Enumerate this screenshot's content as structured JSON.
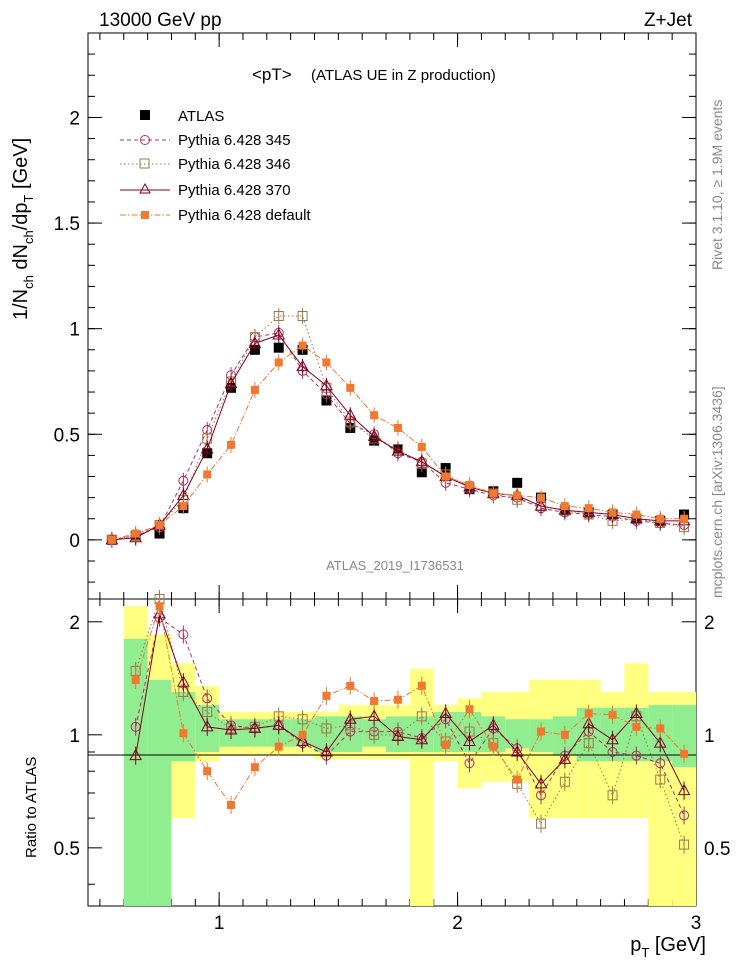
{
  "header": {
    "left": "13000 GeV pp",
    "right": "Z+Jet",
    "title": "<pT>",
    "subtitle": "(ATLAS UE in Z production)",
    "analysis_id": "ATLAS_2019_I1736531",
    "side_version": "Rivet 3.1.10, ≥ 1.9M events",
    "side_site": "mcplots.cern.ch [arXiv:1306.3436]"
  },
  "axes": {
    "ylabel_main": "1/Nch dNch/dpT [GeV]",
    "ylabel_main_parts": [
      "1/N",
      "ch",
      " dN",
      "ch",
      "/dp",
      "T",
      " [GeV]"
    ],
    "ylabel_ratio": "Ratio to ATLAS",
    "xlabel": "pT [GeV]",
    "xlabel_parts": [
      "p",
      "T",
      " [GeV]"
    ],
    "main_yticks": [
      "0",
      "0.5",
      "1",
      "1.5",
      "2"
    ],
    "ratio_yticks": [
      "0.5",
      "1",
      "2"
    ],
    "xticks": [
      "1",
      "2",
      "3"
    ]
  },
  "legend": {
    "atlas": "ATLAS",
    "s345": "Pythia 6.428 345",
    "s346": "Pythia 6.428 346",
    "s370": "Pythia 6.428 370",
    "sdef": "Pythia 6.428 default"
  },
  "colors": {
    "atlas": "#000000",
    "s345": "#b03060",
    "s346": "#a0784a",
    "s370": "#800020",
    "sdef": "#f07830",
    "band_inner": "#90ee90",
    "band_outer": "#ffff80"
  },
  "chart_data": {
    "type": "line",
    "x": [
      0.55,
      0.65,
      0.75,
      0.85,
      0.95,
      1.05,
      1.15,
      1.25,
      1.35,
      1.45,
      1.55,
      1.65,
      1.75,
      1.85,
      1.95,
      2.05,
      2.15,
      2.25,
      2.35,
      2.45,
      2.55,
      2.65,
      2.75,
      2.85,
      2.95
    ],
    "xlim": [
      0.45,
      3.0
    ],
    "ylim": [
      -0.28,
      2.4
    ],
    "ratio_ylim": [
      0.35,
      2.3
    ],
    "ratio_log": true,
    "series": [
      {
        "key": "atlas",
        "name": "ATLAS",
        "values": [
          0.0,
          0.02,
          0.03,
          0.15,
          0.41,
          0.72,
          0.9,
          0.91,
          0.9,
          0.66,
          0.53,
          0.47,
          0.43,
          0.32,
          0.34,
          0.24,
          0.23,
          0.27,
          0.2,
          0.14,
          0.13,
          0.12,
          0.1,
          0.09,
          0.12
        ]
      },
      {
        "key": "s345",
        "name": "Pythia 6.428 345",
        "values": [
          0.0,
          0.02,
          0.06,
          0.28,
          0.52,
          0.78,
          0.96,
          0.98,
          0.8,
          0.69,
          0.55,
          0.5,
          0.41,
          0.37,
          0.27,
          0.24,
          0.21,
          0.2,
          0.15,
          0.13,
          0.12,
          0.11,
          0.09,
          0.08,
          0.07
        ]
      },
      {
        "key": "s346",
        "name": "Pythia 6.428 346",
        "values": [
          0.0,
          0.02,
          0.07,
          0.19,
          0.48,
          0.75,
          0.96,
          1.06,
          1.06,
          0.72,
          0.56,
          0.48,
          0.43,
          0.36,
          0.31,
          0.25,
          0.22,
          0.19,
          0.16,
          0.14,
          0.12,
          0.09,
          0.1,
          0.08,
          0.06
        ]
      },
      {
        "key": "s370",
        "name": "Pythia 6.428 370",
        "values": [
          0.0,
          0.01,
          0.07,
          0.21,
          0.43,
          0.74,
          0.93,
          0.97,
          0.82,
          0.73,
          0.59,
          0.49,
          0.42,
          0.37,
          0.3,
          0.25,
          0.22,
          0.21,
          0.16,
          0.14,
          0.13,
          0.12,
          0.1,
          0.09,
          0.09
        ]
      },
      {
        "key": "sdef",
        "name": "Pythia 6.428 default",
        "values": [
          0.0,
          0.03,
          0.07,
          0.16,
          0.31,
          0.45,
          0.71,
          0.84,
          0.92,
          0.84,
          0.72,
          0.59,
          0.53,
          0.44,
          0.3,
          0.26,
          0.22,
          0.21,
          0.2,
          0.16,
          0.15,
          0.13,
          0.12,
          0.1,
          0.1
        ]
      }
    ],
    "ratios": {
      "s345": [
        1.05,
        2.05,
        1.85,
        1.25,
        1.06,
        1.04,
        1.06,
        0.95,
        0.88,
        1.02,
        1.02,
        1.02,
        0.98,
        1.1,
        0.84,
        1.04,
        0.92,
        0.69,
        0.88,
        1.02,
        0.9,
        0.88,
        0.84,
        0.61
      ],
      "s346": [
        1.48,
        2.3,
        1.3,
        1.15,
        1.04,
        1.05,
        1.12,
        1.1,
        1.04,
        1.06,
        1.0,
        1.0,
        1.12,
        0.96,
        1.02,
        0.95,
        0.74,
        0.58,
        0.75,
        0.95,
        0.69,
        1.12,
        0.76,
        0.51
      ],
      "s370": [
        0.88,
        2.1,
        1.38,
        1.05,
        1.03,
        1.04,
        1.06,
        0.96,
        0.9,
        1.1,
        1.12,
        0.99,
        0.97,
        1.14,
        0.96,
        1.06,
        0.9,
        0.74,
        0.86,
        1.07,
        0.97,
        1.14,
        0.95,
        0.71
      ],
      "sdef": [
        1.4,
        2.2,
        1.01,
        0.8,
        0.65,
        0.82,
        0.93,
        1.0,
        1.27,
        1.35,
        1.23,
        1.24,
        1.35,
        0.94,
        1.17,
        0.93,
        0.76,
        1.02,
        1.0,
        1.14,
        1.13,
        1.05,
        1.04,
        0.89
      ]
    },
    "ratio_band_inner": [
      [
        0.35,
        1.8
      ],
      [
        0.35,
        1.4
      ],
      [
        0.85,
        1.3
      ],
      [
        0.9,
        1.2
      ],
      [
        0.93,
        1.1
      ],
      [
        0.93,
        1.1
      ],
      [
        0.93,
        1.1
      ],
      [
        0.93,
        1.1
      ],
      [
        0.9,
        1.12
      ],
      [
        0.9,
        1.12
      ],
      [
        0.93,
        1.1
      ],
      [
        0.9,
        1.12
      ],
      [
        0.9,
        1.12
      ],
      [
        0.9,
        1.15
      ],
      [
        0.9,
        1.15
      ],
      [
        0.9,
        1.12
      ],
      [
        0.92,
        1.1
      ],
      [
        0.9,
        1.1
      ],
      [
        0.88,
        1.12
      ],
      [
        0.85,
        1.18
      ],
      [
        0.85,
        1.18
      ],
      [
        0.85,
        1.18
      ],
      [
        0.85,
        1.2
      ],
      [
        0.82,
        1.2
      ]
    ],
    "ratio_band_outer": [
      [
        0.35,
        2.2
      ],
      [
        0.35,
        1.85
      ],
      [
        0.6,
        1.55
      ],
      [
        0.85,
        1.35
      ],
      [
        0.88,
        1.15
      ],
      [
        0.88,
        1.15
      ],
      [
        0.88,
        1.15
      ],
      [
        0.88,
        1.15
      ],
      [
        0.86,
        1.15
      ],
      [
        0.86,
        1.2
      ],
      [
        0.86,
        1.2
      ],
      [
        0.86,
        1.2
      ],
      [
        0.35,
        1.5
      ],
      [
        0.85,
        1.2
      ],
      [
        0.72,
        1.25
      ],
      [
        0.75,
        1.3
      ],
      [
        0.75,
        1.3
      ],
      [
        0.6,
        1.4
      ],
      [
        0.6,
        1.4
      ],
      [
        0.6,
        1.4
      ],
      [
        0.6,
        1.3
      ],
      [
        0.6,
        1.55
      ],
      [
        0.35,
        1.3
      ],
      [
        0.35,
        1.3
      ]
    ]
  }
}
